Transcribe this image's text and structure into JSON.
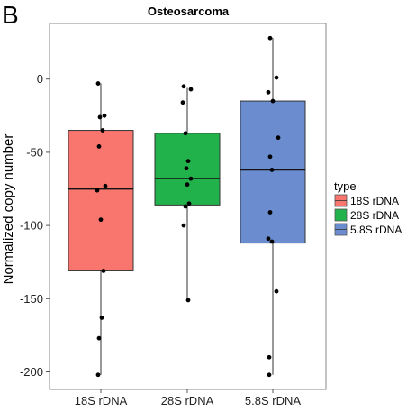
{
  "panel_label": "B",
  "chart_data": {
    "type": "box",
    "title": "Osteosarcoma",
    "xlabel": "",
    "ylabel": "Normalized copy number",
    "ylim": [
      -212,
      38
    ],
    "yticks": [
      0,
      -50,
      -100,
      -150,
      -200
    ],
    "categories": [
      "18S rDNA",
      "28S rDNA",
      "5.8S rDNA"
    ],
    "legend": {
      "title": "type",
      "position": "right",
      "entries": [
        "18S rDNA",
        "28S rDNA",
        "5.8S rDNA"
      ]
    },
    "grid": false,
    "colors": [
      "#F8766D",
      "#22B24C",
      "#6B8DD0"
    ],
    "boxes": [
      {
        "name": "18S rDNA",
        "q1": -131,
        "median": -75,
        "q3": -35,
        "whisker_low": -202,
        "whisker_high": -3
      },
      {
        "name": "28S rDNA",
        "q1": -86,
        "median": -68,
        "q3": -37,
        "whisker_low": -151,
        "whisker_high": -6
      },
      {
        "name": "5.8S rDNA",
        "q1": -112,
        "median": -62,
        "q3": -15,
        "whisker_low": -202,
        "whisker_high": 28
      }
    ],
    "points": [
      [
        -3,
        -25,
        -26,
        -35,
        -46,
        -73,
        -76,
        -96,
        -131,
        -163,
        -177,
        -202
      ],
      [
        -5,
        -7,
        -16,
        -37,
        -56,
        -61,
        -68,
        -72,
        -85,
        -87,
        -100,
        -151
      ],
      [
        28,
        1,
        -9,
        -15,
        -40,
        -53,
        -62,
        -91,
        -109,
        -111,
        -145,
        -190,
        -202
      ]
    ]
  }
}
